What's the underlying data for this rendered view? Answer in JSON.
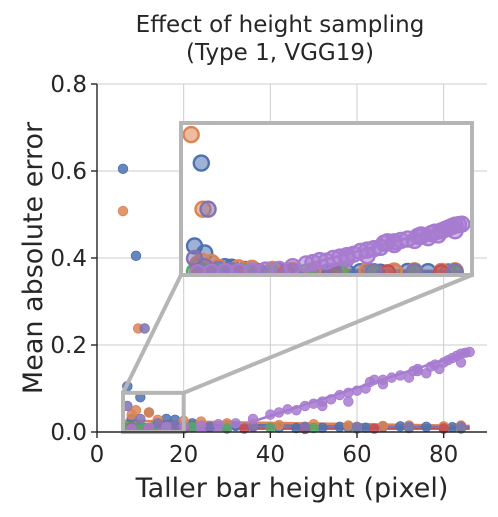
{
  "chart_data": {
    "type": "scatter",
    "title": [
      "Effect of height sampling",
      "(Type 1, VGG19)"
    ],
    "xlabel": "Taller bar height (pixel)",
    "ylabel": "Mean absolute error",
    "xlim": [
      0,
      90
    ],
    "ylim": [
      0,
      0.8
    ],
    "xticks": [
      0,
      20,
      40,
      60,
      80
    ],
    "yticks": [
      0,
      0.2,
      0.4,
      0.6,
      0.8
    ],
    "xtick_labels": [
      "0",
      "20",
      "40",
      "60",
      "80"
    ],
    "ytick_labels": [
      "0.0",
      "0.2",
      "0.4",
      "0.6",
      "0.8"
    ],
    "grid": true,
    "legend": "none",
    "inset": {
      "source_xlim": [
        6,
        20
      ],
      "source_ylim": [
        0,
        0.09
      ],
      "zoom_xlim": [
        3,
        89
      ],
      "zoom_ylim": [
        0,
        0.55
      ],
      "border_color": "#b5b5b5"
    },
    "series": [
      {
        "color": "#4c72b0",
        "trend": [
          [
            6,
            0.018
          ],
          [
            86,
            0.012
          ]
        ],
        "points": [
          [
            6,
            0.605
          ],
          [
            9,
            0.405
          ],
          [
            7,
            0.105
          ],
          [
            10,
            0.08
          ],
          [
            12,
            0.045
          ],
          [
            8,
            0.03
          ],
          [
            16,
            0.03
          ],
          [
            18,
            0.028
          ],
          [
            22,
            0.02
          ],
          [
            26,
            0.012
          ],
          [
            32,
            0.014
          ],
          [
            36,
            0.012
          ],
          [
            42,
            0.01
          ],
          [
            48,
            0.012
          ],
          [
            52,
            0.01
          ],
          [
            56,
            0.012
          ],
          [
            62,
            0.01
          ],
          [
            66,
            0.012
          ],
          [
            72,
            0.01
          ],
          [
            76,
            0.012
          ],
          [
            82,
            0.011
          ],
          [
            84,
            0.013
          ],
          [
            30,
            0.016
          ],
          [
            46,
            0.009
          ],
          [
            58,
            0.011
          ],
          [
            70,
            0.013
          ],
          [
            80,
            0.01
          ]
        ]
      },
      {
        "color": "#dd8452",
        "trend": [
          [
            6,
            0.026
          ],
          [
            86,
            0.014
          ]
        ],
        "points": [
          [
            6,
            0.508
          ],
          [
            9.5,
            0.238
          ],
          [
            9,
            0.05
          ],
          [
            12,
            0.045
          ],
          [
            8,
            0.04
          ],
          [
            14,
            0.028
          ],
          [
            20,
            0.026
          ],
          [
            24,
            0.024
          ],
          [
            30,
            0.02
          ],
          [
            36,
            0.018
          ],
          [
            42,
            0.016
          ],
          [
            50,
            0.018
          ],
          [
            58,
            0.015
          ],
          [
            66,
            0.014
          ],
          [
            72,
            0.015
          ],
          [
            80,
            0.013
          ],
          [
            84,
            0.015
          ]
        ]
      },
      {
        "color": "#55a868",
        "trend": [
          [
            6,
            0.01
          ],
          [
            86,
            0.009
          ]
        ],
        "points": [
          [
            7,
            0.012
          ],
          [
            9,
            0.014
          ],
          [
            11,
            0.01
          ],
          [
            13,
            0.012
          ],
          [
            16,
            0.009
          ],
          [
            22,
            0.011
          ],
          [
            30,
            0.008
          ],
          [
            40,
            0.01
          ],
          [
            50,
            0.009
          ],
          [
            60,
            0.008
          ],
          [
            72,
            0.009
          ],
          [
            84,
            0.008
          ]
        ]
      },
      {
        "color": "#c44e52",
        "trend": [
          [
            6,
            0.008
          ],
          [
            86,
            0.008
          ]
        ],
        "points": [
          [
            8,
            0.01
          ],
          [
            12,
            0.009
          ],
          [
            20,
            0.008
          ],
          [
            34,
            0.008
          ],
          [
            48,
            0.007
          ],
          [
            64,
            0.008
          ],
          [
            80,
            0.008
          ]
        ]
      },
      {
        "color": "#8172b3",
        "trend": [
          [
            6,
            0.012
          ],
          [
            86,
            0.012
          ]
        ],
        "points": [
          [
            11,
            0.238
          ],
          [
            7,
            0.06
          ],
          [
            10,
            0.03
          ],
          [
            14,
            0.02
          ],
          [
            18,
            0.015
          ],
          [
            26,
            0.012
          ],
          [
            36,
            0.012
          ],
          [
            48,
            0.012
          ],
          [
            60,
            0.012
          ],
          [
            72,
            0.012
          ],
          [
            84,
            0.012
          ]
        ]
      },
      {
        "color": "#a77bd0",
        "trend": [
          [
            6,
            0.005
          ],
          [
            30,
            0.005
          ],
          [
            86,
            0.185
          ]
        ],
        "points": [
          [
            8,
            0.008
          ],
          [
            12,
            0.01
          ],
          [
            16,
            0.012
          ],
          [
            20,
            0.012
          ],
          [
            24,
            0.015
          ],
          [
            28,
            0.018
          ],
          [
            32,
            0.02
          ],
          [
            36,
            0.03
          ],
          [
            40,
            0.04
          ],
          [
            42,
            0.045
          ],
          [
            46,
            0.05
          ],
          [
            48,
            0.06
          ],
          [
            50,
            0.065
          ],
          [
            52,
            0.07
          ],
          [
            54,
            0.075
          ],
          [
            56,
            0.085
          ],
          [
            58,
            0.09
          ],
          [
            60,
            0.095
          ],
          [
            62,
            0.1
          ],
          [
            63,
            0.115
          ],
          [
            64,
            0.12
          ],
          [
            66,
            0.11
          ],
          [
            68,
            0.125
          ],
          [
            70,
            0.13
          ],
          [
            72,
            0.125
          ],
          [
            73,
            0.14
          ],
          [
            74,
            0.145
          ],
          [
            76,
            0.135
          ],
          [
            77,
            0.15
          ],
          [
            78,
            0.155
          ],
          [
            79,
            0.145
          ],
          [
            80,
            0.16
          ],
          [
            81,
            0.165
          ],
          [
            82,
            0.17
          ],
          [
            83,
            0.175
          ],
          [
            84,
            0.18
          ],
          [
            85,
            0.182
          ],
          [
            86,
            0.184
          ],
          [
            44,
            0.052
          ],
          [
            52,
            0.06
          ],
          [
            58,
            0.07
          ],
          [
            66,
            0.12
          ],
          [
            74,
            0.14
          ],
          [
            84,
            0.16
          ]
        ]
      }
    ]
  }
}
